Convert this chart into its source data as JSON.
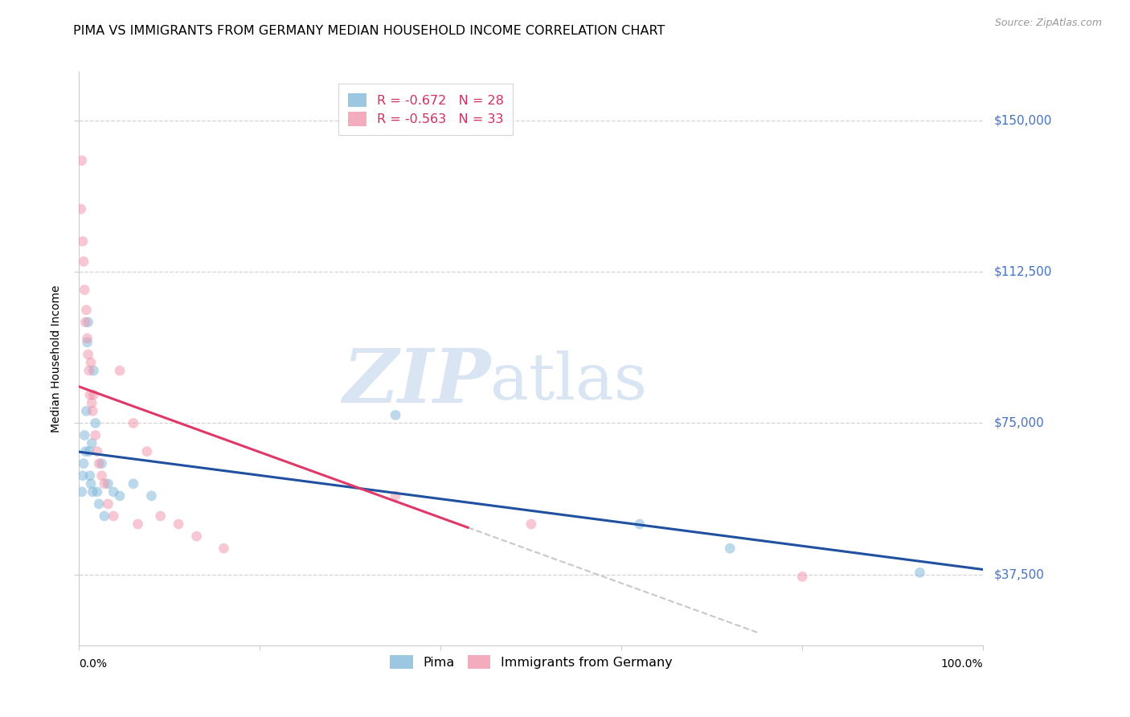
{
  "title": "PIMA VS IMMIGRANTS FROM GERMANY MEDIAN HOUSEHOLD INCOME CORRELATION CHART",
  "source": "Source: ZipAtlas.com",
  "ylabel": "Median Household Income",
  "yticks": [
    37500,
    75000,
    112500,
    150000
  ],
  "ytick_labels": [
    "$37,500",
    "$75,000",
    "$112,500",
    "$150,000"
  ],
  "ymin": 20000,
  "ymax": 162000,
  "xmin": 0.0,
  "xmax": 1.0,
  "pima_color": "#7ab5d8",
  "germany_color": "#f090a8",
  "pima_line_color": "#2050a0",
  "germany_line_color": "#e03868",
  "germany_dash_color": "#c8c8c8",
  "pima_r": -0.672,
  "pima_n": 28,
  "germany_r": -0.563,
  "germany_n": 33,
  "pima_x": [
    0.003,
    0.004,
    0.005,
    0.006,
    0.007,
    0.008,
    0.009,
    0.01,
    0.011,
    0.012,
    0.013,
    0.014,
    0.015,
    0.016,
    0.018,
    0.02,
    0.022,
    0.025,
    0.028,
    0.032,
    0.038,
    0.045,
    0.06,
    0.08,
    0.35,
    0.62,
    0.72,
    0.93
  ],
  "pima_y": [
    58000,
    62000,
    65000,
    72000,
    68000,
    78000,
    95000,
    100000,
    68000,
    62000,
    60000,
    70000,
    58000,
    88000,
    75000,
    58000,
    55000,
    65000,
    52000,
    60000,
    58000,
    57000,
    60000,
    57000,
    77000,
    50000,
    44000,
    38000
  ],
  "germany_x": [
    0.002,
    0.003,
    0.004,
    0.005,
    0.006,
    0.007,
    0.008,
    0.009,
    0.01,
    0.011,
    0.012,
    0.013,
    0.014,
    0.015,
    0.016,
    0.018,
    0.02,
    0.022,
    0.025,
    0.028,
    0.032,
    0.038,
    0.045,
    0.06,
    0.065,
    0.075,
    0.09,
    0.11,
    0.13,
    0.16,
    0.35,
    0.5,
    0.8
  ],
  "germany_y": [
    128000,
    140000,
    120000,
    115000,
    108000,
    100000,
    103000,
    96000,
    92000,
    88000,
    82000,
    90000,
    80000,
    78000,
    82000,
    72000,
    68000,
    65000,
    62000,
    60000,
    55000,
    52000,
    88000,
    75000,
    50000,
    68000,
    52000,
    50000,
    47000,
    44000,
    57000,
    50000,
    37000
  ],
  "title_fontsize": 11.5,
  "axis_label_fontsize": 10,
  "tick_fontsize": 11,
  "source_fontsize": 9,
  "marker_size": 85,
  "marker_alpha": 0.5,
  "background_color": "#ffffff",
  "grid_color": "#d0d0d0",
  "legend_r_color": "#d03060",
  "legend_border_color": "#cccccc"
}
